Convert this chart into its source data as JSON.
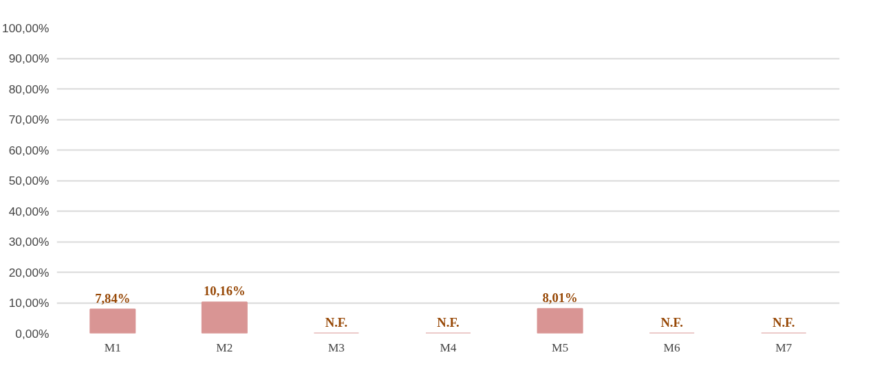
{
  "chart_data": {
    "type": "bar",
    "categories": [
      "M1",
      "M2",
      "M3",
      "M4",
      "M5",
      "M6",
      "M7"
    ],
    "values": [
      7.84,
      10.16,
      0,
      0,
      8.01,
      0,
      0
    ],
    "value_labels": [
      "7,84%",
      "10,16%",
      "N.F.",
      "N.F.",
      "8,01%",
      "N.F.",
      "N.F."
    ],
    "color": "#d99594",
    "ylim": [
      0,
      100
    ],
    "yticks": [
      {
        "value": 0,
        "label": "0,00%"
      },
      {
        "value": 10,
        "label": "10,00%"
      },
      {
        "value": 20,
        "label": "20,00%"
      },
      {
        "value": 30,
        "label": "30,00%"
      },
      {
        "value": 40,
        "label": "40,00%"
      },
      {
        "value": 50,
        "label": "50,00%"
      },
      {
        "value": 60,
        "label": "60,00%"
      },
      {
        "value": 70,
        "label": "70,00%"
      },
      {
        "value": 80,
        "label": "80,00%"
      },
      {
        "value": 90,
        "label": "90,00%"
      },
      {
        "value": 100,
        "label": "100,00%"
      }
    ],
    "grid": "y"
  }
}
